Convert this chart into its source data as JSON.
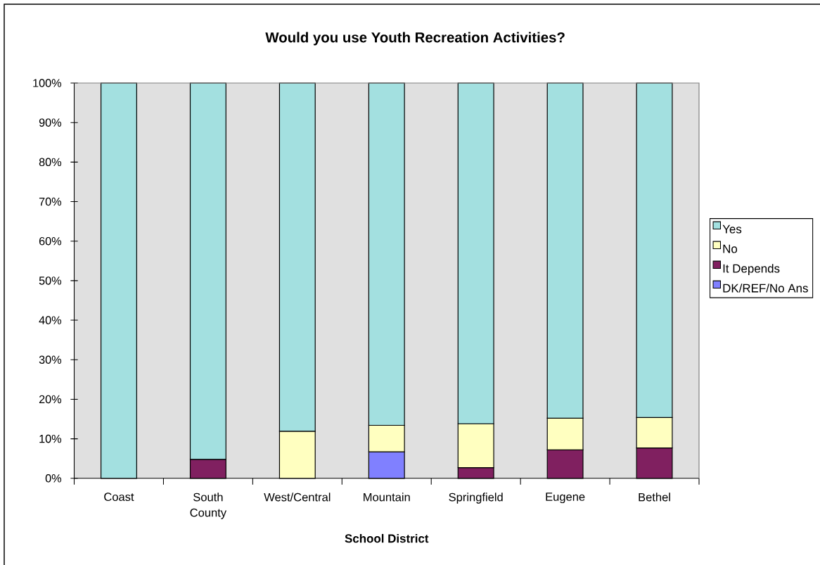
{
  "chart_data": {
    "type": "bar",
    "title": "Would you use Youth Recreation Activities?",
    "xlabel": "School District",
    "categories": [
      "Coast",
      "South County",
      "West/Central",
      "Mountain",
      "Springfield",
      "Eugene",
      "Bethel"
    ],
    "stacked": true,
    "series": [
      {
        "name": "DK/REF/No Ans",
        "color": "#8080ff",
        "values": [
          null,
          null,
          null,
          6.7,
          null,
          null,
          null
        ]
      },
      {
        "name": "It Depends",
        "color": "#802060",
        "values": [
          null,
          4.8,
          null,
          null,
          2.7,
          7.2,
          7.7
        ]
      },
      {
        "name": "No",
        "color": "#ffffc0",
        "values": [
          null,
          null,
          11.9,
          6.7,
          11.1,
          8.0,
          7.7
        ]
      },
      {
        "name": "Yes",
        "color": "#a3e0e0",
        "values": [
          100,
          95.2,
          88.1,
          86.6,
          86.2,
          84.8,
          84.6
        ]
      }
    ],
    "ylim": [
      0,
      100
    ],
    "yticks": [
      {
        "value": 0,
        "label": "0%"
      },
      {
        "value": 10,
        "label": "10%"
      },
      {
        "value": 20,
        "label": "20%"
      },
      {
        "value": 30,
        "label": "30%"
      },
      {
        "value": 40,
        "label": "40%"
      },
      {
        "value": 50,
        "label": "50%"
      },
      {
        "value": 60,
        "label": "60%"
      },
      {
        "value": 70,
        "label": "70%"
      },
      {
        "value": 80,
        "label": "80%"
      },
      {
        "value": 90,
        "label": "90%"
      },
      {
        "value": 100,
        "label": "100%"
      }
    ],
    "legend": "right"
  }
}
